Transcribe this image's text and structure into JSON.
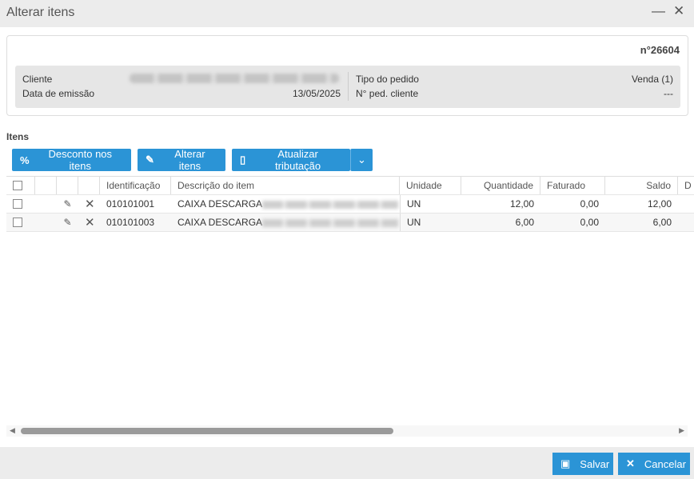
{
  "window": {
    "title": "Alterar itens",
    "minimize_icon": "minus",
    "close_icon": "x"
  },
  "order": {
    "number": "n°26604",
    "labels": {
      "cliente": "Cliente",
      "data_emissao": "Data de emissão",
      "tipo_pedido": "Tipo do pedido",
      "ped_cliente": "N° ped. cliente"
    },
    "values": {
      "data_emissao": "13/05/2025",
      "tipo_pedido": "Venda (1)",
      "ped_cliente": "---"
    }
  },
  "section": "Itens",
  "toolbar": {
    "desconto": "Desconto nos itens",
    "alterar": "Alterar itens",
    "atualizar": "Atualizar tributação"
  },
  "table": {
    "headers": [
      "Identificação",
      "Descrição do item",
      "Unidade",
      "Quantidade",
      "Faturado",
      "Saldo",
      "D"
    ],
    "rows": [
      {
        "id": "010101001",
        "desc": "CAIXA DESCARGA",
        "un": "UN",
        "qtd": "12,00",
        "fat": "0,00",
        "saldo": "12,00"
      },
      {
        "id": "010101003",
        "desc": "CAIXA DESCARGA",
        "un": "UN",
        "qtd": "6,00",
        "fat": "0,00",
        "saldo": "6,00"
      }
    ]
  },
  "footer": {
    "salvar": "Salvar",
    "cancelar": "Cancelar"
  },
  "colors": {
    "accent": "#2b94d6",
    "titlebar": "#ececec"
  }
}
